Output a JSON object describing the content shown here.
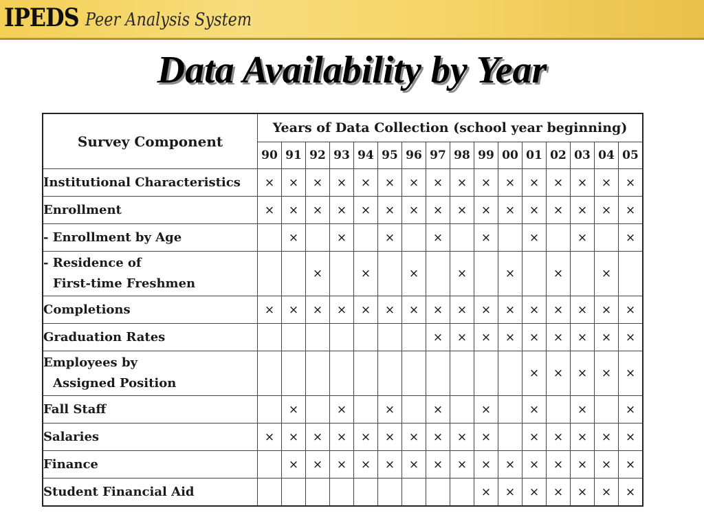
{
  "header": {
    "logo_text": "IPEDS",
    "system_name": "Peer Analysis System"
  },
  "title": "Data Availability by Year",
  "table": {
    "component_header": "Survey Component",
    "years_header": "Years of Data Collection (school year beginning)",
    "mark_glyph": "×",
    "years": [
      "90",
      "91",
      "92",
      "93",
      "94",
      "95",
      "96",
      "97",
      "98",
      "99",
      "00",
      "01",
      "02",
      "03",
      "04",
      "05"
    ],
    "rows": [
      {
        "label": "Institutional Characteristics",
        "marks": [
          1,
          1,
          1,
          1,
          1,
          1,
          1,
          1,
          1,
          1,
          1,
          1,
          1,
          1,
          1,
          1
        ]
      },
      {
        "label": "Enrollment",
        "marks": [
          1,
          1,
          1,
          1,
          1,
          1,
          1,
          1,
          1,
          1,
          1,
          1,
          1,
          1,
          1,
          1
        ]
      },
      {
        "label": "- Enrollment by Age",
        "marks": [
          0,
          1,
          0,
          1,
          0,
          1,
          0,
          1,
          0,
          1,
          0,
          1,
          0,
          1,
          0,
          1
        ]
      },
      {
        "label": "- Residence of",
        "label2": "First-time Freshmen",
        "marks": [
          0,
          0,
          1,
          0,
          1,
          0,
          1,
          0,
          1,
          0,
          1,
          0,
          1,
          0,
          1,
          0
        ]
      },
      {
        "label": "Completions",
        "marks": [
          1,
          1,
          1,
          1,
          1,
          1,
          1,
          1,
          1,
          1,
          1,
          1,
          1,
          1,
          1,
          1
        ]
      },
      {
        "label": "Graduation Rates",
        "marks": [
          0,
          0,
          0,
          0,
          0,
          0,
          0,
          1,
          1,
          1,
          1,
          1,
          1,
          1,
          1,
          1
        ]
      },
      {
        "label": "Employees by",
        "label2": "Assigned Position",
        "marks": [
          0,
          0,
          0,
          0,
          0,
          0,
          0,
          0,
          0,
          0,
          0,
          1,
          1,
          1,
          1,
          1
        ]
      },
      {
        "label": "Fall Staff",
        "marks": [
          0,
          1,
          0,
          1,
          0,
          1,
          0,
          1,
          0,
          1,
          0,
          1,
          0,
          1,
          0,
          1
        ]
      },
      {
        "label": "Salaries",
        "marks": [
          1,
          1,
          1,
          1,
          1,
          1,
          1,
          1,
          1,
          1,
          0,
          1,
          1,
          1,
          1,
          1
        ]
      },
      {
        "label": "Finance",
        "marks": [
          0,
          1,
          1,
          1,
          1,
          1,
          1,
          1,
          1,
          1,
          1,
          1,
          1,
          1,
          1,
          1
        ]
      },
      {
        "label": "Student Financial Aid",
        "marks": [
          0,
          0,
          0,
          0,
          0,
          0,
          0,
          0,
          0,
          1,
          1,
          1,
          1,
          1,
          1,
          1
        ]
      }
    ]
  }
}
